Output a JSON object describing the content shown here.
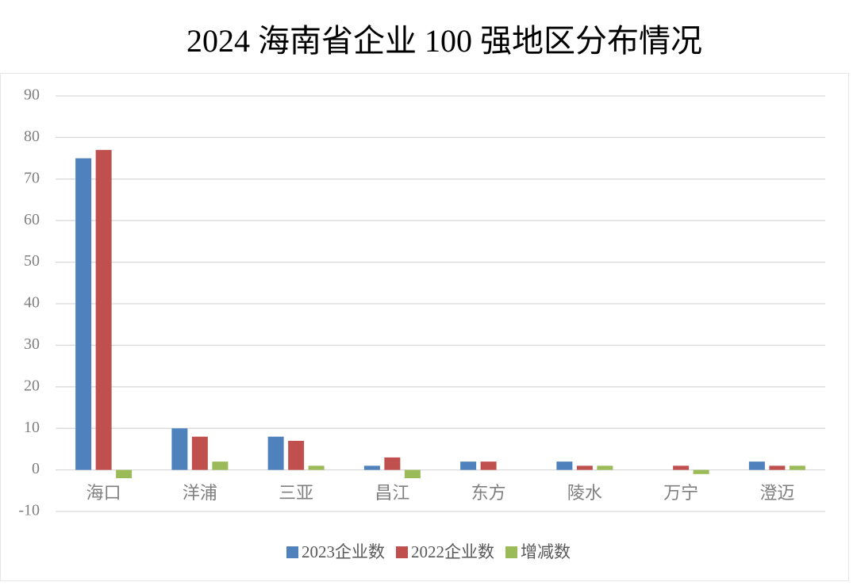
{
  "chart_data": {
    "type": "bar",
    "title": "2024 海南省企业 100 强地区分布情况",
    "categories": [
      "海口",
      "洋浦",
      "三亚",
      "昌江",
      "东方",
      "陵水",
      "万宁",
      "澄迈"
    ],
    "series": [
      {
        "name": "2023企业数",
        "color": "#4f81bd",
        "values": [
          75,
          10,
          8,
          1,
          2,
          2,
          0,
          2
        ]
      },
      {
        "name": "2022企业数",
        "color": "#c0504d",
        "values": [
          77,
          8,
          7,
          3,
          2,
          1,
          1,
          1
        ]
      },
      {
        "name": "增减数",
        "color": "#9bbb59",
        "values": [
          -2,
          2,
          1,
          -2,
          0,
          1,
          -1,
          1
        ]
      }
    ],
    "ylim": [
      -10,
      90
    ],
    "yticks": [
      -10,
      0,
      10,
      20,
      30,
      40,
      50,
      60,
      70,
      80,
      90
    ],
    "grid": true,
    "legend": "bottom"
  }
}
